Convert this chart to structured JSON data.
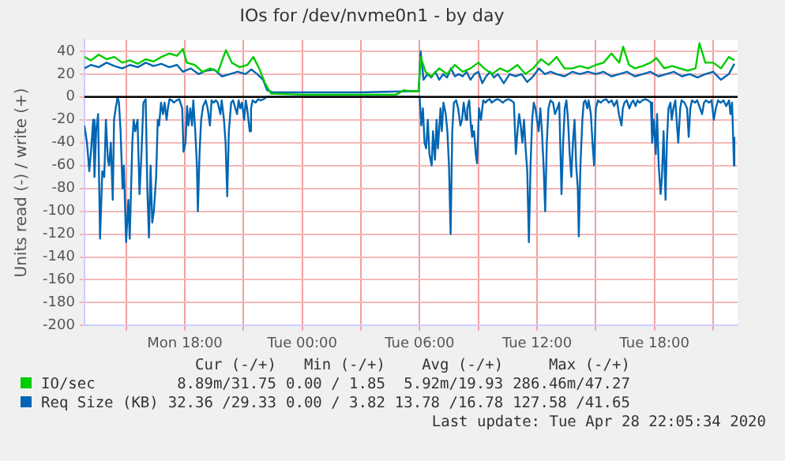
{
  "chart_data": {
    "type": "line",
    "title": "IOs for /dev/nvme0n1 - by day",
    "ylabel": "Units read (-) / write (+)",
    "xlim": [
      "2020-04-27T12:52",
      "2020-04-28T22:15"
    ],
    "ylim": [
      -200,
      50
    ],
    "xticks": [
      {
        "value": "2020-04-27T15:00",
        "label": null
      },
      {
        "value": "2020-04-27T18:00",
        "label": "Mon 18:00"
      },
      {
        "value": "2020-04-27T21:00",
        "label": null
      },
      {
        "value": "2020-04-28T00:00",
        "label": "Tue 00:00"
      },
      {
        "value": "2020-04-28T03:00",
        "label": null
      },
      {
        "value": "2020-04-28T06:00",
        "label": "Tue 06:00"
      },
      {
        "value": "2020-04-28T09:00",
        "label": null
      },
      {
        "value": "2020-04-28T12:00",
        "label": "Tue 12:00"
      },
      {
        "value": "2020-04-28T15:00",
        "label": null
      },
      {
        "value": "2020-04-28T18:00",
        "label": "Tue 18:00"
      },
      {
        "value": "2020-04-28T21:00",
        "label": null
      }
    ],
    "yticks": [
      -200,
      -180,
      -160,
      -140,
      -120,
      -100,
      -80,
      -60,
      -40,
      -20,
      0,
      20,
      40
    ],
    "grid": true,
    "legend": "bottom",
    "marker": "none",
    "line_style": "solid",
    "ref_lines": [
      {
        "axis": "y",
        "value": 0,
        "color": "#000000"
      }
    ],
    "series": [
      {
        "name": "IO/sec",
        "color": "#00cc00",
        "x": [
          "2020-04-27T12:52",
          "2020-04-27T13:12",
          "2020-04-27T13:36",
          "2020-04-27T14:00",
          "2020-04-27T14:24",
          "2020-04-27T14:48",
          "2020-04-27T15:12",
          "2020-04-27T15:36",
          "2020-04-27T16:00",
          "2020-04-27T16:24",
          "2020-04-27T16:48",
          "2020-04-27T17:12",
          "2020-04-27T17:36",
          "2020-04-27T17:54",
          "2020-04-27T18:06",
          "2020-04-27T18:30",
          "2020-04-27T18:54",
          "2020-04-27T19:18",
          "2020-04-27T19:42",
          "2020-04-27T20:06",
          "2020-04-27T20:24",
          "2020-04-27T20:48",
          "2020-04-27T21:12",
          "2020-04-27T21:30",
          "2020-04-27T21:48",
          "2020-04-27T22:06",
          "2020-04-27T22:24",
          "2020-04-28T00:00",
          "2020-04-28T03:00",
          "2020-04-28T04:48",
          "2020-04-28T05:12",
          "2020-04-28T05:30",
          "2020-04-28T05:57",
          "2020-04-28T06:03",
          "2020-04-28T06:18",
          "2020-04-28T06:36",
          "2020-04-28T07:00",
          "2020-04-28T07:24",
          "2020-04-28T07:48",
          "2020-04-28T08:12",
          "2020-04-28T08:36",
          "2020-04-28T09:00",
          "2020-04-28T09:18",
          "2020-04-28T09:42",
          "2020-04-28T10:06",
          "2020-04-28T10:30",
          "2020-04-28T11:00",
          "2020-04-28T11:24",
          "2020-04-28T11:48",
          "2020-04-28T12:12",
          "2020-04-28T12:36",
          "2020-04-28T13:00",
          "2020-04-28T13:24",
          "2020-04-28T13:48",
          "2020-04-28T14:12",
          "2020-04-28T14:36",
          "2020-04-28T15:00",
          "2020-04-28T15:24",
          "2020-04-28T15:48",
          "2020-04-28T16:12",
          "2020-04-28T16:24",
          "2020-04-28T16:42",
          "2020-04-28T17:00",
          "2020-04-28T17:24",
          "2020-04-28T17:48",
          "2020-04-28T18:06",
          "2020-04-28T18:30",
          "2020-04-28T18:54",
          "2020-04-28T19:18",
          "2020-04-28T19:42",
          "2020-04-28T20:06",
          "2020-04-28T20:18",
          "2020-04-28T20:36",
          "2020-04-28T21:00",
          "2020-04-28T21:24",
          "2020-04-28T21:48",
          "2020-04-28T22:05"
        ],
        "values": [
          35,
          32,
          37,
          33,
          35,
          30,
          32,
          29,
          33,
          31,
          35,
          38,
          36,
          42,
          30,
          28,
          22,
          25,
          22,
          41,
          30,
          26,
          28,
          35,
          25,
          12,
          3,
          2,
          2,
          2,
          6,
          5,
          5,
          35,
          22,
          18,
          25,
          20,
          28,
          22,
          25,
          30,
          25,
          20,
          25,
          22,
          28,
          20,
          25,
          33,
          28,
          35,
          25,
          25,
          27,
          25,
          28,
          30,
          38,
          30,
          44,
          28,
          25,
          27,
          30,
          34,
          25,
          27,
          25,
          23,
          25,
          47,
          30,
          30,
          25,
          35,
          32
        ]
      },
      {
        "name": "Req Size (KB)",
        "color": "#0066b3",
        "x": [
          "2020-04-27T12:52",
          "2020-04-27T13:12",
          "2020-04-27T13:36",
          "2020-04-27T14:00",
          "2020-04-27T14:24",
          "2020-04-27T14:48",
          "2020-04-27T15:12",
          "2020-04-27T15:36",
          "2020-04-27T16:00",
          "2020-04-27T16:24",
          "2020-04-27T16:48",
          "2020-04-27T17:12",
          "2020-04-27T17:36",
          "2020-04-27T17:54",
          "2020-04-27T18:18",
          "2020-04-27T18:42",
          "2020-04-27T19:06",
          "2020-04-27T19:30",
          "2020-04-27T19:54",
          "2020-04-27T20:18",
          "2020-04-27T20:42",
          "2020-04-27T21:06",
          "2020-04-27T21:24",
          "2020-04-27T21:42",
          "2020-04-27T22:00",
          "2020-04-27T22:12",
          "2020-04-27T22:30",
          "2020-04-28T00:00",
          "2020-04-28T03:00",
          "2020-04-28T05:30",
          "2020-04-28T05:57",
          "2020-04-28T06:03",
          "2020-04-28T06:12",
          "2020-04-28T06:24",
          "2020-04-28T06:36",
          "2020-04-28T06:48",
          "2020-04-28T07:00",
          "2020-04-28T07:12",
          "2020-04-28T07:24",
          "2020-04-28T07:36",
          "2020-04-28T07:48",
          "2020-04-28T08:00",
          "2020-04-28T08:12",
          "2020-04-28T08:24",
          "2020-04-28T08:36",
          "2020-04-28T08:48",
          "2020-04-28T09:00",
          "2020-04-28T09:12",
          "2020-04-28T09:24",
          "2020-04-28T09:36",
          "2020-04-28T09:48",
          "2020-04-28T10:00",
          "2020-04-28T10:18",
          "2020-04-28T10:36",
          "2020-04-28T10:54",
          "2020-04-28T11:12",
          "2020-04-28T11:30",
          "2020-04-28T11:48",
          "2020-04-28T12:06",
          "2020-04-28T12:24",
          "2020-04-28T12:42",
          "2020-04-28T13:00",
          "2020-04-28T13:24",
          "2020-04-28T13:48",
          "2020-04-28T14:12",
          "2020-04-28T14:36",
          "2020-04-28T15:00",
          "2020-04-28T15:24",
          "2020-04-28T15:48",
          "2020-04-28T16:12",
          "2020-04-28T16:36",
          "2020-04-28T17:00",
          "2020-04-28T17:24",
          "2020-04-28T17:48",
          "2020-04-28T18:12",
          "2020-04-28T18:36",
          "2020-04-28T19:00",
          "2020-04-28T19:24",
          "2020-04-28T19:48",
          "2020-04-28T20:12",
          "2020-04-28T20:36",
          "2020-04-28T21:00",
          "2020-04-28T21:24",
          "2020-04-28T21:48",
          "2020-04-28T22:05"
        ],
        "values": [
          25,
          28,
          26,
          30,
          27,
          25,
          28,
          26,
          30,
          27,
          29,
          26,
          28,
          22,
          25,
          20,
          23,
          24,
          18,
          20,
          22,
          20,
          24,
          20,
          15,
          6,
          4,
          4,
          4,
          5,
          5,
          40,
          15,
          20,
          17,
          22,
          15,
          20,
          17,
          25,
          18,
          20,
          18,
          22,
          15,
          20,
          22,
          12,
          18,
          22,
          17,
          20,
          12,
          20,
          18,
          20,
          13,
          18,
          25,
          20,
          22,
          20,
          18,
          22,
          20,
          22,
          20,
          22,
          18,
          20,
          22,
          18,
          20,
          22,
          18,
          20,
          22,
          18,
          20,
          17,
          20,
          22,
          15,
          20,
          29
        ]
      },
      {
        "color": "#0066b3",
        "x": [
          "2020-04-27T12:52",
          "2020-04-27T13:00",
          "2020-04-27T13:07",
          "2020-04-27T13:13",
          "2020-04-27T13:19",
          "2020-04-27T13:23",
          "2020-04-27T13:28",
          "2020-04-27T13:34",
          "2020-04-27T13:40",
          "2020-04-27T13:47",
          "2020-04-27T13:53",
          "2020-04-27T13:58",
          "2020-04-27T14:04",
          "2020-04-27T14:08",
          "2020-04-27T14:13",
          "2020-04-27T14:19",
          "2020-04-27T14:23",
          "2020-04-27T14:28",
          "2020-04-27T14:34",
          "2020-04-27T14:38",
          "2020-04-27T14:43",
          "2020-04-27T14:49",
          "2020-04-27T14:53",
          "2020-04-27T15:00",
          "2020-04-27T15:07",
          "2020-04-27T15:11",
          "2020-04-27T15:19",
          "2020-04-27T15:23",
          "2020-04-27T15:28",
          "2020-04-27T15:35",
          "2020-04-27T15:41",
          "2020-04-27T15:47",
          "2020-04-27T15:53",
          "2020-04-27T16:00",
          "2020-04-27T16:05",
          "2020-04-27T16:10",
          "2020-04-27T16:15",
          "2020-04-27T16:20",
          "2020-04-27T16:25",
          "2020-04-27T16:32",
          "2020-04-27T16:37",
          "2020-04-27T16:41",
          "2020-04-27T16:47",
          "2020-04-27T16:53",
          "2020-04-27T16:58",
          "2020-04-27T17:04",
          "2020-04-27T17:08",
          "2020-04-27T17:13",
          "2020-04-27T17:20",
          "2020-04-27T17:26",
          "2020-04-27T17:35",
          "2020-04-27T17:43",
          "2020-04-27T17:52",
          "2020-04-27T17:56",
          "2020-04-27T18:02",
          "2020-04-27T18:07",
          "2020-04-27T18:11",
          "2020-04-27T18:17",
          "2020-04-27T18:22",
          "2020-04-27T18:26",
          "2020-04-27T18:32",
          "2020-04-27T18:37",
          "2020-04-27T18:40",
          "2020-04-27T18:45",
          "2020-04-27T18:50",
          "2020-04-27T18:56",
          "2020-04-27T19:04",
          "2020-04-27T19:10",
          "2020-04-27T19:17",
          "2020-04-27T19:22",
          "2020-04-27T19:28",
          "2020-04-27T19:35",
          "2020-04-27T19:41",
          "2020-04-27T19:49",
          "2020-04-27T19:53",
          "2020-04-27T20:00",
          "2020-04-27T20:05",
          "2020-04-27T20:10",
          "2020-04-27T20:15",
          "2020-04-27T20:22",
          "2020-04-27T20:28",
          "2020-04-27T20:35",
          "2020-04-27T20:40",
          "2020-04-27T20:45",
          "2020-04-27T20:50",
          "2020-04-27T20:55",
          "2020-04-27T21:02",
          "2020-04-27T21:07",
          "2020-04-27T21:11",
          "2020-04-27T21:19",
          "2020-04-27T21:23",
          "2020-04-27T21:28",
          "2020-04-27T21:37",
          "2020-04-27T21:45",
          "2020-04-27T21:52",
          "2020-04-27T22:02",
          "2020-04-27T22:10",
          "2020-04-28T05:54",
          "2020-04-28T06:00",
          "2020-04-28T06:05",
          "2020-04-28T06:10",
          "2020-04-28T06:15",
          "2020-04-28T06:20",
          "2020-04-28T06:25",
          "2020-04-28T06:30",
          "2020-04-28T06:37",
          "2020-04-28T06:41",
          "2020-04-28T06:47",
          "2020-04-28T06:52",
          "2020-04-28T06:56",
          "2020-04-28T07:04",
          "2020-04-28T07:08",
          "2020-04-28T07:13",
          "2020-04-28T07:20",
          "2020-04-28T07:25",
          "2020-04-28T07:30",
          "2020-04-28T07:35",
          "2020-04-28T07:40",
          "2020-04-28T07:45",
          "2020-04-28T07:52",
          "2020-04-28T07:58",
          "2020-04-28T08:05",
          "2020-04-28T08:10",
          "2020-04-28T08:15",
          "2020-04-28T08:22",
          "2020-04-28T08:26",
          "2020-04-28T08:32",
          "2020-04-28T08:37",
          "2020-04-28T08:41",
          "2020-04-28T08:47",
          "2020-04-28T08:52",
          "2020-04-28T08:56",
          "2020-04-28T09:02",
          "2020-04-28T09:08",
          "2020-04-28T09:15",
          "2020-04-28T09:22",
          "2020-04-28T09:28",
          "2020-04-28T09:35",
          "2020-04-28T09:41",
          "2020-04-28T09:50",
          "2020-04-28T09:58",
          "2020-04-28T10:07",
          "2020-04-28T10:15",
          "2020-04-28T10:23",
          "2020-04-28T10:32",
          "2020-04-28T10:40",
          "2020-04-28T10:49",
          "2020-04-28T10:55",
          "2020-04-28T11:00",
          "2020-04-28T11:05",
          "2020-04-28T11:10",
          "2020-04-28T11:15",
          "2020-04-28T11:20",
          "2020-04-28T11:25",
          "2020-04-28T11:30",
          "2020-04-28T11:35",
          "2020-04-28T11:40",
          "2020-04-28T11:45",
          "2020-04-28T11:50",
          "2020-04-28T11:55",
          "2020-04-28T12:00",
          "2020-04-28T12:05",
          "2020-04-28T12:10",
          "2020-04-28T12:15",
          "2020-04-28T12:20",
          "2020-04-28T12:25",
          "2020-04-28T12:30",
          "2020-04-28T12:35",
          "2020-04-28T12:41",
          "2020-04-28T12:49",
          "2020-04-28T12:55",
          "2020-04-28T13:02",
          "2020-04-28T13:08",
          "2020-04-28T13:15",
          "2020-04-28T13:20",
          "2020-04-28T13:25",
          "2020-04-28T13:30",
          "2020-04-28T13:35",
          "2020-04-28T13:40",
          "2020-04-28T13:45",
          "2020-04-28T13:50",
          "2020-04-28T13:55",
          "2020-04-28T14:00",
          "2020-04-28T14:05",
          "2020-04-28T14:08",
          "2020-04-28T14:13",
          "2020-04-28T14:19",
          "2020-04-28T14:23",
          "2020-04-28T14:28",
          "2020-04-28T14:34",
          "2020-04-28T14:38",
          "2020-04-28T14:45",
          "2020-04-28T14:50",
          "2020-04-28T14:55",
          "2020-04-28T15:00",
          "2020-04-28T15:07",
          "2020-04-28T15:15",
          "2020-04-28T15:23",
          "2020-04-28T15:32",
          "2020-04-28T15:40",
          "2020-04-28T15:49",
          "2020-04-28T15:56",
          "2020-04-28T16:05",
          "2020-04-28T16:11",
          "2020-04-28T16:19",
          "2020-04-28T16:23",
          "2020-04-28T16:28",
          "2020-04-28T16:35",
          "2020-04-28T16:43",
          "2020-04-28T16:50",
          "2020-04-28T16:55",
          "2020-04-28T17:02",
          "2020-04-28T17:08",
          "2020-04-28T17:15",
          "2020-04-28T17:23",
          "2020-04-28T17:32",
          "2020-04-28T17:40",
          "2020-04-28T17:49",
          "2020-04-28T17:53",
          "2020-04-28T17:58",
          "2020-04-28T18:04",
          "2020-04-28T18:08",
          "2020-04-28T18:13",
          "2020-04-28T18:19",
          "2020-04-28T18:23",
          "2020-04-28T18:28",
          "2020-04-28T18:34",
          "2020-04-28T18:38",
          "2020-04-28T18:43",
          "2020-04-28T18:49",
          "2020-04-28T18:53",
          "2020-04-28T18:58",
          "2020-04-28T19:04",
          "2020-04-28T19:08",
          "2020-04-28T19:13",
          "2020-04-28T19:19",
          "2020-04-28T19:23",
          "2020-04-28T19:32",
          "2020-04-28T19:40",
          "2020-04-28T19:45",
          "2020-04-28T19:50",
          "2020-04-28T19:55",
          "2020-04-28T20:04",
          "2020-04-28T20:11",
          "2020-04-28T20:20",
          "2020-04-28T20:26",
          "2020-04-28T20:32",
          "2020-04-28T20:38",
          "2020-04-28T20:47",
          "2020-04-28T20:55",
          "2020-04-28T21:02",
          "2020-04-28T21:08",
          "2020-04-28T21:15",
          "2020-04-28T21:23",
          "2020-04-28T21:32",
          "2020-04-28T21:40",
          "2020-04-28T21:49",
          "2020-04-28T21:53",
          "2020-04-28T21:58",
          "2020-04-28T22:04",
          "2020-04-28T22:05"
        ],
        "values": [
          -25,
          -40,
          -65,
          -45,
          -20,
          -70,
          -30,
          -15,
          -124,
          -65,
          -70,
          -20,
          -55,
          -60,
          -40,
          -90,
          -20,
          -10,
          0,
          -5,
          -30,
          -80,
          -60,
          -127,
          -90,
          -124,
          -40,
          -20,
          -30,
          -20,
          -85,
          -50,
          -5,
          -2,
          -80,
          -123,
          -60,
          -110,
          -100,
          -70,
          -20,
          -25,
          -5,
          -15,
          -5,
          -20,
          -10,
          -2,
          -3,
          -5,
          -3,
          -2,
          -10,
          -48,
          -40,
          -8,
          -25,
          -10,
          -25,
          -3,
          -30,
          -60,
          -100,
          -50,
          -20,
          -8,
          -3,
          -10,
          -25,
          -3,
          -5,
          -3,
          -5,
          -15,
          -3,
          -20,
          -40,
          -87,
          -30,
          -5,
          -3,
          -10,
          -15,
          -3,
          -10,
          -5,
          -20,
          -3,
          -10,
          -30,
          -10,
          -3,
          -5,
          -2,
          -3,
          -2,
          0,
          0,
          0,
          -25,
          -10,
          -40,
          -45,
          -20,
          -50,
          -60,
          -30,
          -55,
          -20,
          -45,
          -10,
          -30,
          -5,
          -15,
          -30,
          -60,
          -120,
          -30,
          -5,
          -3,
          -10,
          -25,
          -20,
          -5,
          -20,
          -10,
          -3,
          -25,
          -35,
          -30,
          -50,
          -58,
          -10,
          -20,
          -3,
          -5,
          -3,
          -2,
          -5,
          -3,
          -2,
          -3,
          -5,
          -3,
          -2,
          -3,
          -5,
          -50,
          -30,
          -15,
          -25,
          -40,
          -20,
          -45,
          -65,
          -127,
          -60,
          -20,
          -5,
          -10,
          -20,
          -30,
          -10,
          -30,
          -60,
          -100,
          -40,
          -10,
          -3,
          -5,
          -15,
          -10,
          -5,
          -85,
          -40,
          -10,
          -3,
          -20,
          -50,
          -70,
          -40,
          -20,
          -60,
          -80,
          -122,
          -60,
          -20,
          -5,
          -3,
          -10,
          -3,
          -15,
          -40,
          -60,
          -10,
          -3,
          -5,
          -3,
          -2,
          -5,
          -3,
          -8,
          -3,
          -15,
          -25,
          -10,
          -5,
          -3,
          -10,
          -5,
          -3,
          -8,
          -3,
          -5,
          -3,
          -2,
          -3,
          -5,
          -40,
          -20,
          -50,
          -15,
          -60,
          -85,
          -70,
          -30,
          -90,
          -40,
          -10,
          -5,
          -20,
          -10,
          -3,
          -20,
          -40,
          -10,
          -3,
          -5,
          -10,
          -35,
          -10,
          -3,
          -5,
          -3,
          -10,
          -15,
          -5,
          -3,
          -5,
          -3,
          -20,
          -10,
          -3,
          -5,
          -3,
          -8,
          -3,
          -15,
          -5,
          -60,
          -35
        ]
      }
    ],
    "annotations": [
      "Cur (-/+)",
      "Min (-/+)",
      "Avg (-/+)",
      "Max (-/+)",
      "8.89m/31.75",
      "0.00 / 1.85",
      "5.92m/19.93",
      "286.46m/47.27",
      "32.36 /29.33",
      "0.00 / 3.82",
      "13.78 /16.78",
      "127.58 /41.65",
      "Last update: Tue Apr 28 22:05:34 2020"
    ]
  }
}
